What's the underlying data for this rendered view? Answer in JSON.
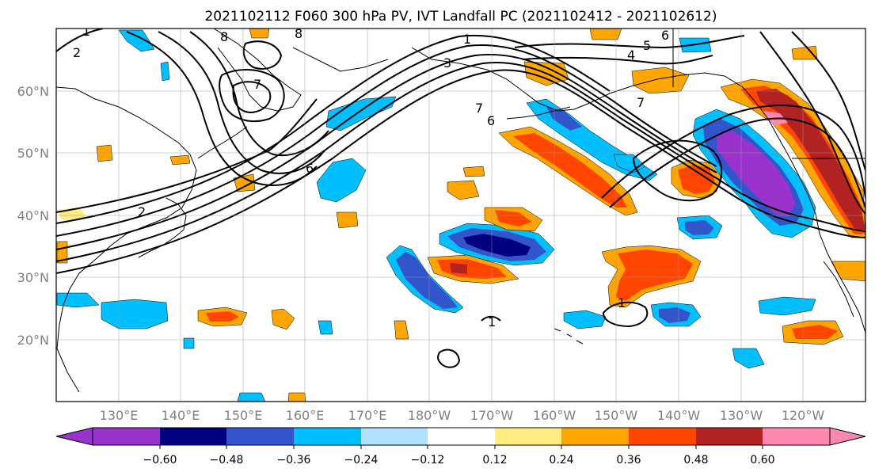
{
  "title": "2021102112 F060 300 hPa PV, IVT Landfall PC (2021102412 - 2021102612)",
  "map": {
    "lon_labels": [
      "130°E",
      "140°E",
      "150°E",
      "160°E",
      "170°E",
      "180°W",
      "170°W",
      "160°W",
      "150°W",
      "140°W",
      "130°W",
      "120°W"
    ],
    "lat_labels": [
      "60°N",
      "50°N",
      "40°N",
      "30°N",
      "20°N"
    ],
    "lon_range": [
      120,
      250
    ],
    "lat_range": [
      10,
      70
    ]
  },
  "colorbar": {
    "tick_labels": [
      "−0.60",
      "−0.48",
      "−0.36",
      "−0.24",
      "−0.12",
      "0.12",
      "0.24",
      "0.36",
      "0.48",
      "0.60"
    ],
    "colors": [
      "#9933cc",
      "#000080",
      "#3355cc",
      "#00bfff",
      "#b0e2ff",
      "#ffffff",
      "#ffec80",
      "#ffa500",
      "#ff4500",
      "#b22222",
      "#ff88b0"
    ],
    "extend": "both"
  },
  "contour_labels": [
    "8",
    "8",
    "7",
    "7",
    "6",
    "6",
    "2",
    "1",
    "1",
    "1",
    "4",
    "5",
    "6",
    "7",
    "2",
    "1",
    "3"
  ]
}
